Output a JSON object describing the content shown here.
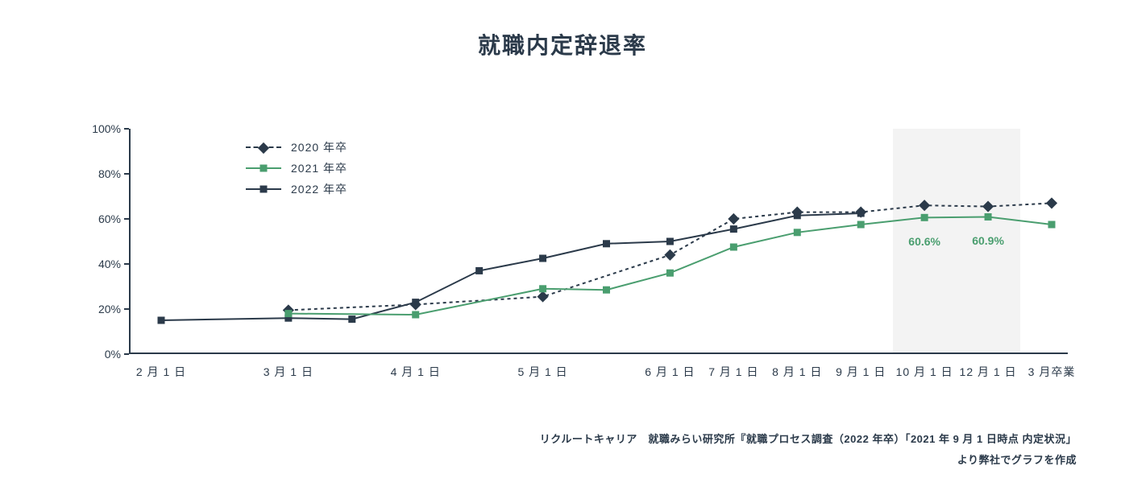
{
  "title": "就職内定辞退率",
  "source_line1": "リクルートキャリア　就職みらい研究所『就職プロセス調査（2022 年卒）「2021 年 9 月 1 日時点 内定状況」",
  "source_line2": "より弊社でグラフを作成",
  "chart": {
    "type": "line",
    "background_color": "#ffffff",
    "axis_color": "#2b3a4a",
    "axis_line_width": 2,
    "shade_band": {
      "x_from_idx": 11.5,
      "x_to_idx": 13.5,
      "color": "#f2f2f2"
    },
    "y": {
      "min": 0,
      "max": 100,
      "tick_step": 20,
      "suffix": "%",
      "label_fontsize": 14
    },
    "x": {
      "indices_for_labels": [
        0,
        2,
        4,
        6,
        8,
        9,
        10,
        11,
        12,
        13,
        14
      ],
      "labels": [
        "2 月 1 日",
        "3 月 1 日",
        "4 月 1 日",
        "5 月 1 日",
        "6 月 1 日",
        "7 月 1 日",
        "8 月 1 日",
        "9 月 1 日",
        "10 月 1 日",
        "12 月 1 日",
        "3 月卒業"
      ],
      "label_fontsize": 14,
      "n_points": 15
    },
    "legend": {
      "position": "upper-left",
      "items": [
        {
          "label": "2020 年卒",
          "series_key": "s2020"
        },
        {
          "label": "2021 年卒",
          "series_key": "s2021"
        },
        {
          "label": "2022 年卒",
          "series_key": "s2022"
        }
      ]
    },
    "series": {
      "s2020": {
        "color": "#2b3a4a",
        "line_width": 2,
        "dash": "4,4",
        "marker": "diamond",
        "marker_size": 10,
        "x_idx": [
          2,
          4,
          6,
          8,
          9,
          10,
          11,
          12,
          13,
          14
        ],
        "y": [
          19.5,
          22.0,
          25.5,
          44.0,
          60.0,
          63.0,
          63.0,
          66.0,
          65.5,
          67.0
        ]
      },
      "s2021": {
        "color": "#4a9e6f",
        "line_width": 2,
        "dash": null,
        "marker": "square",
        "marker_size": 9,
        "x_idx": [
          2,
          4,
          6,
          7,
          8,
          9,
          10,
          11,
          12,
          13,
          14
        ],
        "y": [
          18.0,
          17.5,
          29.0,
          28.5,
          36.0,
          47.5,
          54.0,
          57.5,
          60.6,
          60.9,
          57.5
        ]
      },
      "s2022": {
        "color": "#2b3a4a",
        "line_width": 2,
        "dash": null,
        "marker": "square",
        "marker_size": 9,
        "x_idx": [
          0,
          2,
          3,
          4,
          5,
          6,
          7,
          8,
          9,
          10,
          11
        ],
        "y": [
          15.0,
          16.0,
          15.5,
          23.0,
          37.0,
          42.5,
          49.0,
          50.0,
          55.5,
          61.5,
          62.5
        ]
      }
    },
    "annotations": [
      {
        "text": "60.6%",
        "x_idx": 12,
        "y": 60.6,
        "dy": 22,
        "color": "#4a9e6f"
      },
      {
        "text": "60.9%",
        "x_idx": 13,
        "y": 60.9,
        "dy": 22,
        "color": "#4a9e6f"
      }
    ]
  }
}
